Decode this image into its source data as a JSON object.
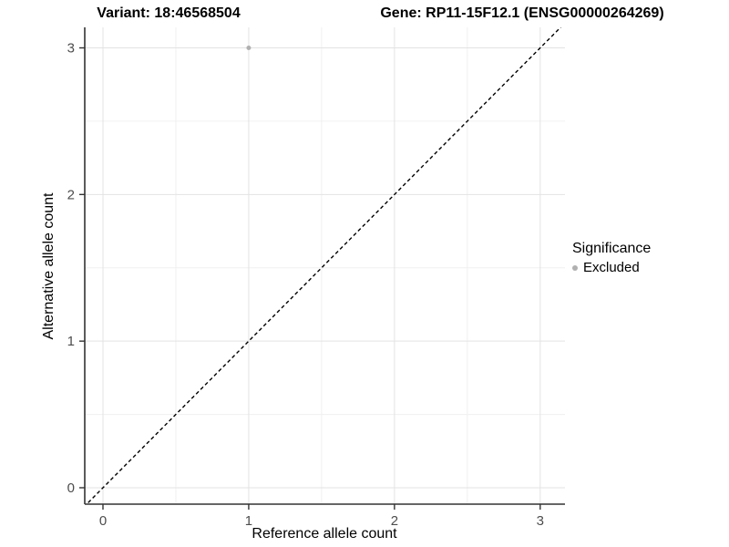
{
  "chart_data": {
    "type": "scatter",
    "title_left": "Variant: 18:46568504",
    "title_right": "Gene: RP11-15F12.1 (ENSG00000264269)",
    "xlabel": "Reference allele count",
    "ylabel": "Alternative allele count",
    "xlim": [
      -0.125,
      3.17
    ],
    "ylim": [
      -0.112,
      3.14
    ],
    "x_ticks": [
      0,
      1,
      2,
      3
    ],
    "y_ticks": [
      0,
      1,
      2,
      3
    ],
    "x_minor_ticks": [
      0.5,
      1.5,
      2.5
    ],
    "y_minor_ticks": [
      0.5,
      1.5,
      2.5
    ],
    "grid": "major+minor",
    "series": [
      {
        "name": "Excluded",
        "color": "#b0b0b0",
        "points": [
          {
            "x": 1,
            "y": 3
          }
        ]
      }
    ],
    "reference_line": {
      "type": "identity",
      "slope": 1,
      "intercept": 0,
      "style": "dashed",
      "color": "#000000"
    },
    "legend": {
      "title": "Significance",
      "position": "right",
      "items": [
        {
          "label": "Excluded",
          "color": "#b0b0b0"
        }
      ]
    }
  },
  "colors": {
    "background": "#ffffff",
    "grid_major": "#e3e3e3",
    "grid_minor": "#f0f0f0",
    "axis_line": "#333333",
    "tick_label": "#4d4d4d",
    "point": "#b0b0b0"
  }
}
